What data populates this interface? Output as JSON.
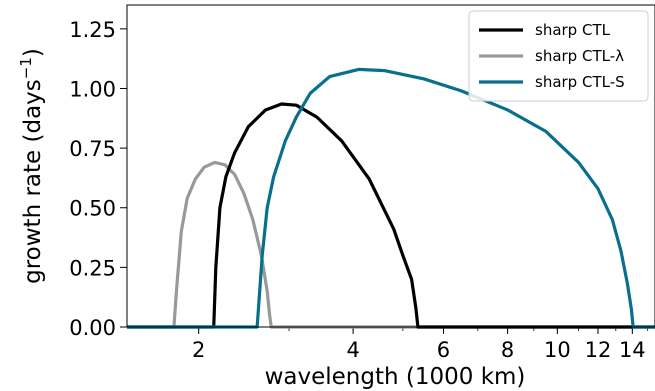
{
  "chart_data": {
    "type": "line",
    "xlabel": "wavelength (1000 km)",
    "ylabel": "growth rate (days",
    "ylabel_sup": "−1",
    "ylabel_close": ")",
    "xscale": "log",
    "xlim": [
      1.45,
      15.5
    ],
    "ylim": [
      0,
      1.35
    ],
    "xticks": [
      {
        "value": 2,
        "label": "2"
      },
      {
        "value": 4,
        "label": "4"
      },
      {
        "value": 6,
        "label": "6"
      },
      {
        "value": 8,
        "label": "8"
      },
      {
        "value": 10,
        "label": "10"
      },
      {
        "value": 12,
        "label": "12"
      },
      {
        "value": 14,
        "label": "14"
      }
    ],
    "yticks": [
      {
        "value": 0,
        "label": "0.00"
      },
      {
        "value": 0.25,
        "label": "0.25"
      },
      {
        "value": 0.5,
        "label": "0.50"
      },
      {
        "value": 0.75,
        "label": "0.75"
      },
      {
        "value": 1.0,
        "label": "1.00"
      },
      {
        "value": 1.25,
        "label": "1.25"
      }
    ],
    "legend_position": "top-right",
    "series": [
      {
        "name": "sharp CTL",
        "color": "#000000",
        "x": [
          1.45,
          2.14,
          2.16,
          2.2,
          2.26,
          2.35,
          2.5,
          2.7,
          2.9,
          3.1,
          3.4,
          3.8,
          4.3,
          4.8,
          5.0,
          5.2,
          5.3,
          5.35,
          15.5
        ],
        "y": [
          0,
          0,
          0.25,
          0.5,
          0.63,
          0.73,
          0.84,
          0.91,
          0.935,
          0.93,
          0.88,
          0.78,
          0.62,
          0.41,
          0.3,
          0.2,
          0.08,
          0,
          0
        ]
      },
      {
        "name": "sharp CTL-λ",
        "color": "#999999",
        "x": [
          1.45,
          1.79,
          1.81,
          1.85,
          1.9,
          1.97,
          2.05,
          2.15,
          2.25,
          2.35,
          2.45,
          2.55,
          2.65,
          2.72,
          2.75,
          2.77,
          15.5
        ],
        "y": [
          0,
          0,
          0.15,
          0.4,
          0.54,
          0.62,
          0.67,
          0.69,
          0.68,
          0.64,
          0.56,
          0.45,
          0.3,
          0.15,
          0.05,
          0,
          0
        ]
      },
      {
        "name": "sharp CTL-S",
        "color": "#0a6f8c",
        "x": [
          1.45,
          2.6,
          2.62,
          2.66,
          2.72,
          2.8,
          2.95,
          3.1,
          3.3,
          3.6,
          4.1,
          4.6,
          5.5,
          6.5,
          8.0,
          9.5,
          11.0,
          12.0,
          12.8,
          13.3,
          13.7,
          13.95,
          14.05,
          15.5
        ],
        "y": [
          0,
          0,
          0.1,
          0.3,
          0.5,
          0.63,
          0.78,
          0.88,
          0.98,
          1.05,
          1.08,
          1.075,
          1.04,
          0.99,
          0.91,
          0.82,
          0.69,
          0.58,
          0.45,
          0.32,
          0.18,
          0.07,
          0,
          0
        ]
      }
    ]
  }
}
